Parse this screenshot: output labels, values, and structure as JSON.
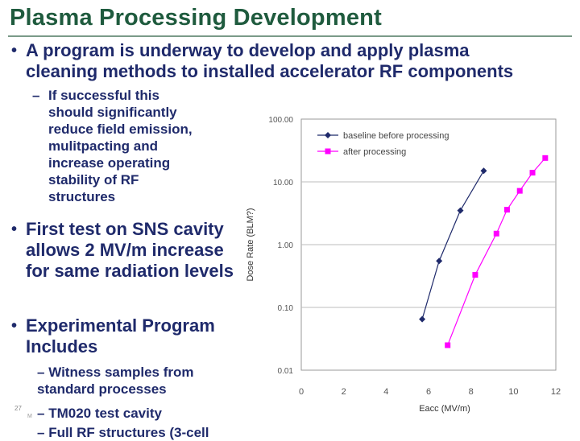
{
  "slide": {
    "title": "Plasma Processing Development",
    "bullets": {
      "main": "A program is underway to develop and apply plasma cleaning methods to installed accelerator RF components",
      "sub_lines": [
        "If successful this",
        "should significantly",
        "reduce field emission,",
        "mulitpacting and",
        "increase operating",
        "stability of RF",
        "structures"
      ],
      "first": "First test on SNS cavity allows 2 MV/m increase for same radiation levels",
      "experimental": "Experimental Program Includes",
      "witness": "Witness samples from standard processes",
      "tm020": "TM020 test cavity",
      "full": "Full RF structures (3-cell"
    },
    "footer": {
      "number": "27",
      "text": "M"
    }
  },
  "colors": {
    "title": "#1f5b3e",
    "text": "#1f2a6b",
    "baseline": "#1f2a6b",
    "after": "#ff00ff"
  },
  "chart_data": {
    "type": "line",
    "xlabel": "Eacc (MV/m)",
    "ylabel": "Dose Rate (BLM?)",
    "xlim": [
      0,
      12
    ],
    "ylim": [
      0.01,
      100
    ],
    "yscale": "log",
    "x_ticks": [
      "0",
      "2",
      "4",
      "6",
      "8",
      "10",
      "12"
    ],
    "y_ticks": [
      "100.00",
      "10.00",
      "1.00",
      "0.10",
      "0.01"
    ],
    "grid": true,
    "legend": "top-left",
    "series": [
      {
        "name": "baseline before processing",
        "color": "#1f2a6b",
        "marker": "diamond",
        "x": [
          5.7,
          6.5,
          7.5,
          8.6
        ],
        "y": [
          0.065,
          0.55,
          3.5,
          15
        ]
      },
      {
        "name": "after processing",
        "color": "#ff00ff",
        "marker": "square",
        "x": [
          6.9,
          8.2,
          9.2,
          9.7,
          10.3,
          10.9,
          11.5
        ],
        "y": [
          0.025,
          0.33,
          1.5,
          3.6,
          7.2,
          14,
          24
        ]
      }
    ]
  }
}
